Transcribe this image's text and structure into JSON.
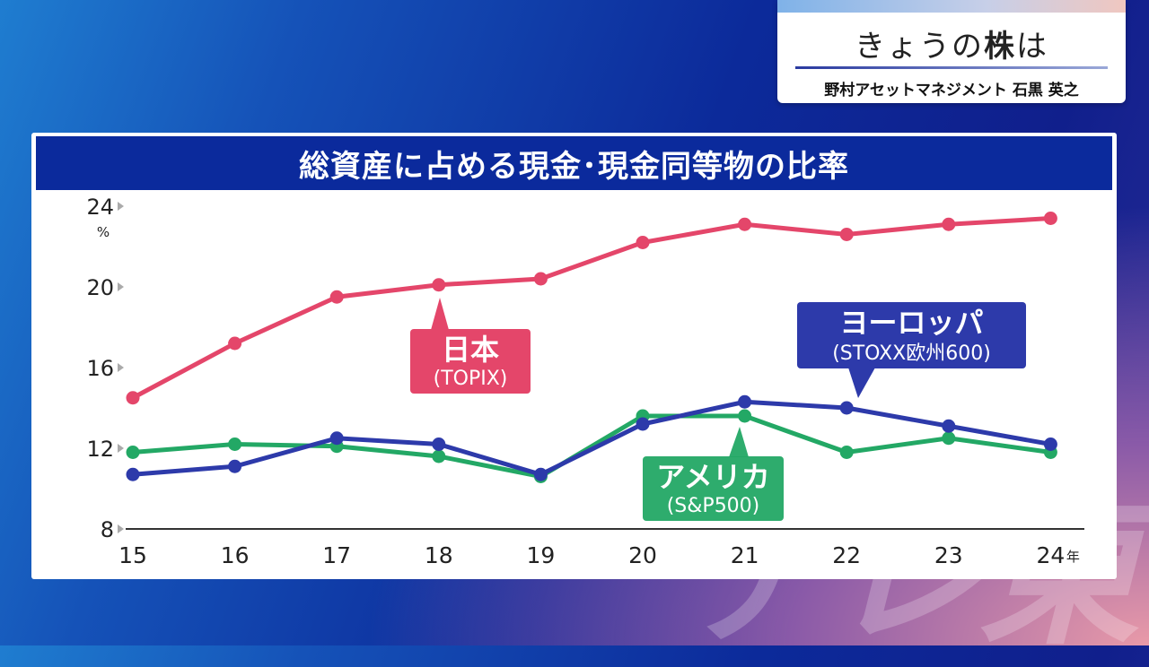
{
  "topic": {
    "title_prefix": "きょうの",
    "title_bold": "株",
    "title_suffix": "は",
    "subtitle": "野村アセットマネジメント 石黒 英之"
  },
  "watermark_text": "テレ東",
  "chart_data": {
    "type": "line",
    "title": "総資産に占める現金･現金同等物の比率",
    "ylabel": "%",
    "x_unit": "年",
    "categories": [
      "15",
      "16",
      "17",
      "18",
      "19",
      "20",
      "21",
      "22",
      "23",
      "24"
    ],
    "ylim": [
      8,
      24
    ],
    "yticks": [
      8,
      12,
      16,
      20,
      24
    ],
    "series": [
      {
        "name": "日本",
        "sub": "(TOPIX)",
        "color": "#e4466a",
        "values": [
          14.5,
          17.2,
          19.5,
          20.1,
          20.4,
          22.2,
          23.1,
          22.6,
          23.1,
          23.4
        ]
      },
      {
        "name": "ヨーロッパ",
        "sub": "(STOXX欧州600)",
        "color": "#2d3aaa",
        "values": [
          10.7,
          11.1,
          12.5,
          12.2,
          10.7,
          13.2,
          14.3,
          14.0,
          13.1,
          12.2
        ]
      },
      {
        "name": "アメリカ",
        "sub": "(S&P500)",
        "color": "#23a865",
        "values": [
          11.8,
          12.2,
          12.1,
          11.6,
          10.6,
          13.6,
          13.6,
          11.8,
          12.5,
          11.8
        ]
      }
    ]
  }
}
